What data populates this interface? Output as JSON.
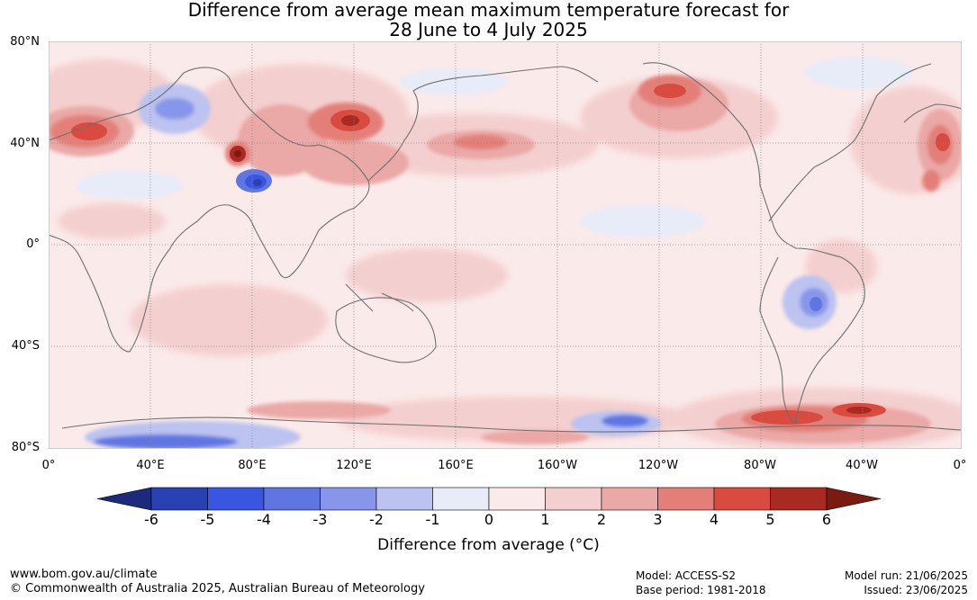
{
  "title": {
    "line1": "Difference from average mean maximum temperature forecast for",
    "line2": "28 June to 4 July 2025"
  },
  "lat_labels": [
    "80°N",
    "40°N",
    "0°",
    "40°S",
    "80°S"
  ],
  "lon_labels": [
    "0°",
    "40°E",
    "80°E",
    "120°E",
    "160°E",
    "160°W",
    "120°W",
    "80°W",
    "40°W",
    "0°"
  ],
  "colorbar": {
    "ticks": [
      "-6",
      "-5",
      "-4",
      "-3",
      "-2",
      "-1",
      "0",
      "1",
      "2",
      "3",
      "4",
      "5",
      "6"
    ],
    "colors": [
      "#1b2a7a",
      "#2a41b4",
      "#3a56e0",
      "#5f76e2",
      "#8796ea",
      "#bcc3f0",
      "#e8ebf8",
      "#fbeaea",
      "#f4cfcf",
      "#eaa8a6",
      "#e37f78",
      "#d94a40",
      "#a92a22",
      "#7a1a12"
    ],
    "title": "Difference from average (°C)"
  },
  "footer": {
    "website": "www.bom.gov.au/climate",
    "copyright": "© Commonwealth of Australia 2025, Australian Bureau of Meteorology",
    "model": "Model: ACCESS-S2",
    "base_period": "Base period: 1981-2018",
    "model_run": "Model run: 21/06/2025",
    "issued": "Issued: 23/06/2025"
  },
  "map_colors": {
    "ocean": "#fbeaea",
    "land_line": "#6f6f6f",
    "grid": "#888888"
  }
}
